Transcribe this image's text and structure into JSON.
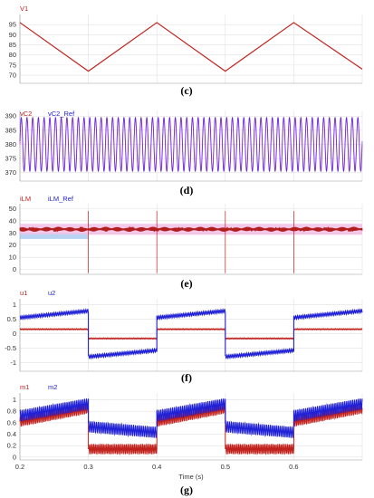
{
  "colors": {
    "red": "#c0211c",
    "dark_red": "#b01e1e",
    "blue": "#1f1fd6",
    "magenta": "#e040e0",
    "pink": "#f0b0e0",
    "light_blue": "#a8c8f0",
    "grid": "#e2e2e2"
  },
  "chart_data": [
    {
      "type": "line",
      "caption": "(c)",
      "series": [
        {
          "name": "V1",
          "color": "#c0211c",
          "x": [
            0.2,
            0.3,
            0.4,
            0.5,
            0.6,
            0.7
          ],
          "y": [
            96,
            72,
            96,
            72,
            96,
            73
          ]
        }
      ],
      "ylim": [
        66,
        100
      ],
      "yticks": [
        70,
        75,
        80,
        85,
        90,
        95
      ],
      "xlim": [
        0.2,
        0.7
      ],
      "grid": true
    },
    {
      "type": "line",
      "caption": "(d)",
      "series": [
        {
          "name": "vC2",
          "color": "#c0211c",
          "description": "sinusoid centred at 380, amplitude ~9.5"
        },
        {
          "name": "vC2_Ref",
          "color": "#1f1fd6",
          "description": "sinusoid centred at 380, amplitude ~9.5"
        }
      ],
      "center": 380,
      "amplitude": 9.5,
      "cycles": 60,
      "ylim": [
        367,
        392
      ],
      "yticks": [
        370,
        375,
        380,
        385,
        390
      ],
      "xlim": [
        0.2,
        0.7
      ],
      "grid": true
    },
    {
      "type": "line",
      "caption": "(e)",
      "series": [
        {
          "name": "iLM",
          "color": "#c0211c",
          "description": "band around 33, ripple ~2, spikes at 0.3, 0.4, 0.5, 0.6"
        },
        {
          "name": "iLM_Ref",
          "color": "#1f1fd6",
          "description": "around 33"
        }
      ],
      "band_center": 33,
      "band_halfwidth": 2,
      "spike_times": [
        0.3,
        0.4,
        0.5,
        0.6
      ],
      "ylim": [
        -4,
        54
      ],
      "yticks": [
        0,
        10,
        20,
        30,
        40,
        50
      ],
      "xlim": [
        0.2,
        0.7
      ],
      "grid": true
    },
    {
      "type": "line",
      "caption": "(f)",
      "series": [
        {
          "name": "u1",
          "color": "#c0211c",
          "segments": [
            {
              "x0": 0.2,
              "x1": 0.3,
              "y": 0.15
            },
            {
              "x0": 0.3,
              "x1": 0.4,
              "y": -0.17
            },
            {
              "x0": 0.4,
              "x1": 0.5,
              "y": 0.15
            },
            {
              "x0": 0.5,
              "x1": 0.6,
              "y": -0.17
            },
            {
              "x0": 0.6,
              "x1": 0.7,
              "y": 0.15
            }
          ]
        },
        {
          "name": "u2",
          "color": "#1f1fd6",
          "segments": [
            {
              "x0": 0.2,
              "x1": 0.3,
              "y0": 0.55,
              "y1": 0.78
            },
            {
              "x0": 0.3,
              "x1": 0.4,
              "y0": -0.8,
              "y1": -0.58
            },
            {
              "x0": 0.4,
              "x1": 0.5,
              "y0": 0.55,
              "y1": 0.78
            },
            {
              "x0": 0.5,
              "x1": 0.6,
              "y0": -0.8,
              "y1": -0.58
            },
            {
              "x0": 0.6,
              "x1": 0.7,
              "y0": 0.55,
              "y1": 0.78
            }
          ]
        }
      ],
      "ylim": [
        -1.3,
        1.2
      ],
      "yticks": [
        -1,
        -0.5,
        0,
        0.5,
        1
      ],
      "xlim": [
        0.2,
        0.7
      ],
      "grid": true
    },
    {
      "type": "line",
      "caption": "(g)",
      "series": [
        {
          "name": "m1",
          "color": "#c0211c",
          "segments": [
            {
              "x0": 0.2,
              "x1": 0.3,
              "y0": 0.62,
              "y1": 0.85
            },
            {
              "x0": 0.3,
              "x1": 0.4,
              "y": 0.14
            },
            {
              "x0": 0.4,
              "x1": 0.5,
              "y0": 0.62,
              "y1": 0.85
            },
            {
              "x0": 0.5,
              "x1": 0.6,
              "y": 0.14
            },
            {
              "x0": 0.6,
              "x1": 0.7,
              "y0": 0.62,
              "y1": 0.85
            }
          ]
        },
        {
          "name": "m2",
          "color": "#1f1fd6",
          "segments": [
            {
              "x0": 0.2,
              "x1": 0.3,
              "y0": 0.72,
              "y1": 0.93
            },
            {
              "x0": 0.3,
              "x1": 0.4,
              "y0": 0.53,
              "y1": 0.43
            },
            {
              "x0": 0.4,
              "x1": 0.5,
              "y0": 0.72,
              "y1": 0.93
            },
            {
              "x0": 0.5,
              "x1": 0.6,
              "y0": 0.53,
              "y1": 0.43
            },
            {
              "x0": 0.6,
              "x1": 0.7,
              "y0": 0.72,
              "y1": 0.93
            }
          ]
        }
      ],
      "ylim": [
        -0.05,
        1.12
      ],
      "yticks": [
        0,
        0.2,
        0.4,
        0.6,
        0.8,
        1
      ],
      "xlim": [
        0.2,
        0.7
      ],
      "xticks": [
        0.2,
        0.3,
        0.4,
        0.5,
        0.6
      ],
      "xlabel": "Time (s)",
      "grid": true
    }
  ]
}
